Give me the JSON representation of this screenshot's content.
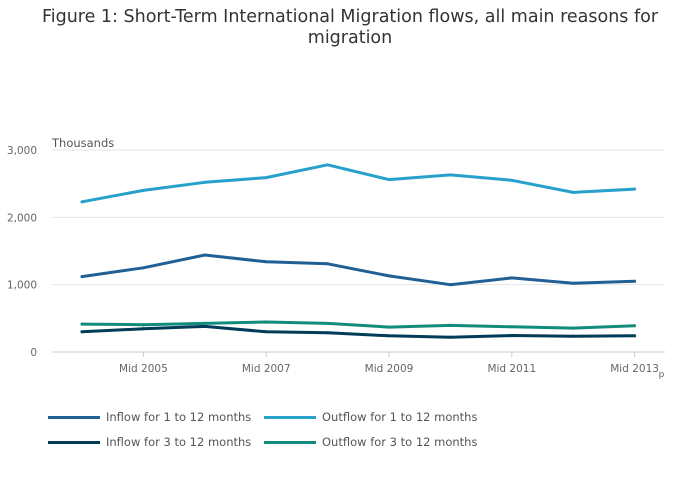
{
  "title": "Figure 1: Short-Term International Migration flows, all main reasons for migration",
  "colors": {
    "inflow_1_12": "#206095",
    "outflow_1_12": "#27a0cc",
    "inflow_3_12": "#003c57",
    "outflow_3_12": "#118c7b",
    "grid": "#e6e6e6",
    "axis": "#cccccc",
    "tick_text": "#666666"
  },
  "chart_data": {
    "type": "line",
    "title": "Figure 1: Short-Term International Migration flows, all main reasons for migration",
    "ylabel": "Thousands",
    "xlabel": "",
    "x": [
      "Mid 2004",
      "Mid 2005",
      "Mid 2006",
      "Mid 2007",
      "Mid 2008",
      "Mid 2009",
      "Mid 2010",
      "Mid 2011",
      "Mid 2012",
      "Mid 2013"
    ],
    "x_tick_labels": [
      "Mid 2005",
      "Mid 2007",
      "Mid 2009",
      "Mid 2011",
      "Mid 2013"
    ],
    "x_tick_suffix": "p",
    "y_ticks": [
      0,
      1000,
      2000,
      3000
    ],
    "y_tick_labels": [
      "0",
      "1,000",
      "2,000",
      "3,000"
    ],
    "ylim": [
      0,
      3000
    ],
    "grid": true,
    "legend_position": "bottom",
    "series": [
      {
        "name": "Inflow for 1 to 12 months",
        "color_key": "inflow_1_12",
        "values": [
          1120,
          1250,
          1440,
          1340,
          1310,
          1130,
          1000,
          1100,
          1020,
          1050
        ]
      },
      {
        "name": "Outflow for 1 to 12 months",
        "color_key": "outflow_1_12",
        "values": [
          2230,
          2400,
          2520,
          2590,
          2780,
          2560,
          2630,
          2550,
          2370,
          2420
        ]
      },
      {
        "name": "Inflow for 3 to 12 months",
        "color_key": "inflow_3_12",
        "values": [
          300,
          345,
          380,
          300,
          285,
          240,
          220,
          245,
          235,
          240
        ]
      },
      {
        "name": "Outflow for 3 to 12 months",
        "color_key": "outflow_3_12",
        "values": [
          415,
          405,
          425,
          445,
          425,
          370,
          395,
          375,
          355,
          390
        ]
      }
    ]
  }
}
